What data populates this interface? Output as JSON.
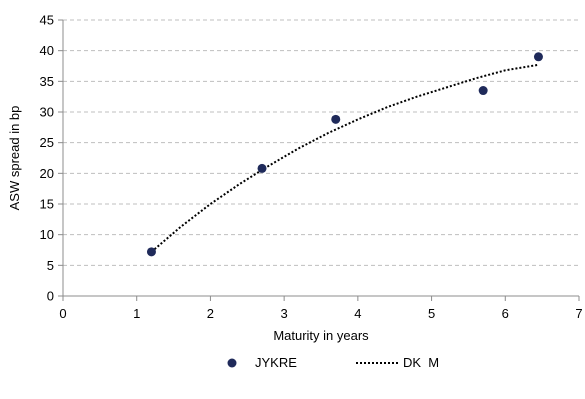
{
  "chart_data": {
    "type": "scatter",
    "title": "",
    "xlabel": "Maturity in years",
    "ylabel": "ASW spread in bp",
    "xlim": [
      0,
      7
    ],
    "ylim": [
      0,
      45
    ],
    "x_ticks": [
      "0",
      "1",
      "2",
      "3",
      "4",
      "5",
      "6",
      "7"
    ],
    "y_ticks": [
      "0",
      "5",
      "10",
      "15",
      "20",
      "25",
      "30",
      "35",
      "40",
      "45"
    ],
    "grid": "horizontal-dashed",
    "legend_position": "bottom",
    "series": [
      {
        "name": "JYKRE",
        "kind": "scatter",
        "color": "#1f2a5a",
        "x": [
          1.2,
          2.7,
          3.7,
          5.7,
          6.45
        ],
        "y": [
          7.2,
          20.8,
          28.8,
          33.5,
          39.0
        ]
      },
      {
        "name": "DK  M",
        "kind": "line",
        "style": "dotted",
        "color": "#000000",
        "x": [
          1.2,
          1.6,
          2.0,
          2.4,
          2.8,
          3.2,
          3.6,
          4.0,
          4.4,
          4.8,
          5.2,
          5.6,
          6.0,
          6.45
        ],
        "y": [
          7.2,
          11.3,
          15.0,
          18.3,
          21.3,
          24.1,
          26.6,
          28.8,
          30.8,
          32.5,
          34.0,
          35.5,
          36.8,
          37.7
        ]
      }
    ]
  }
}
